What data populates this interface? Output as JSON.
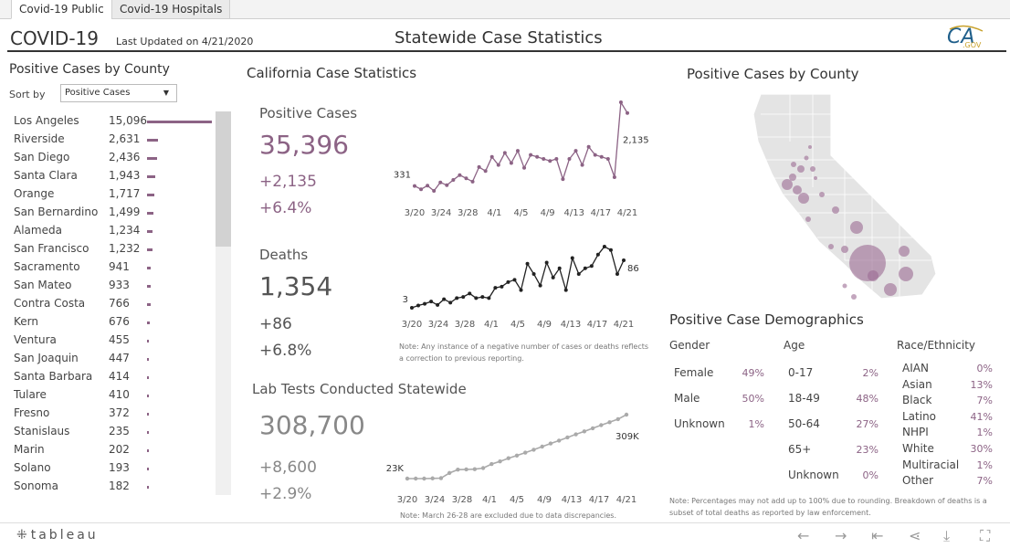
{
  "tabs": [
    {
      "label": "Covid-19 Public",
      "active": true
    },
    {
      "label": "Covid-19 Hospitals",
      "active": false
    }
  ],
  "header": {
    "title": "COVID-19",
    "updated": "Last Updated on 4/21/2020",
    "center_title": "Statewide Case Statistics",
    "logo_text": "CA",
    "logo_sub": ".GOV"
  },
  "county_panel": {
    "title": "Positive Cases by County",
    "sort_label": "Sort by",
    "sort_value": "Positive Cases",
    "counties": [
      {
        "name": "Los Angeles",
        "value": "15,096",
        "n": 15096
      },
      {
        "name": "Riverside",
        "value": "2,631",
        "n": 2631
      },
      {
        "name": "San Diego",
        "value": "2,436",
        "n": 2436
      },
      {
        "name": "Santa Clara",
        "value": "1,943",
        "n": 1943
      },
      {
        "name": "Orange",
        "value": "1,717",
        "n": 1717
      },
      {
        "name": "San Bernardino",
        "value": "1,499",
        "n": 1499
      },
      {
        "name": "Alameda",
        "value": "1,234",
        "n": 1234
      },
      {
        "name": "San Francisco",
        "value": "1,232",
        "n": 1232
      },
      {
        "name": "Sacramento",
        "value": "941",
        "n": 941
      },
      {
        "name": "San Mateo",
        "value": "933",
        "n": 933
      },
      {
        "name": "Contra Costa",
        "value": "766",
        "n": 766
      },
      {
        "name": "Kern",
        "value": "676",
        "n": 676
      },
      {
        "name": "Ventura",
        "value": "455",
        "n": 455
      },
      {
        "name": "San Joaquin",
        "value": "447",
        "n": 447
      },
      {
        "name": "Santa Barbara",
        "value": "414",
        "n": 414
      },
      {
        "name": "Tulare",
        "value": "410",
        "n": 410
      },
      {
        "name": "Fresno",
        "value": "372",
        "n": 372
      },
      {
        "name": "Stanislaus",
        "value": "235",
        "n": 235
      },
      {
        "name": "Marin",
        "value": "202",
        "n": 202
      },
      {
        "name": "Solano",
        "value": "193",
        "n": 193
      },
      {
        "name": "Sonoma",
        "value": "182",
        "n": 182
      }
    ]
  },
  "stats": {
    "title": "California Case Statistics",
    "positive": {
      "label": "Positive Cases",
      "total": "35,396",
      "delta": "+2,135",
      "pct": "+6.4%",
      "first": "331",
      "last": "2,135"
    },
    "deaths": {
      "label": "Deaths",
      "total": "1,354",
      "delta": "+86",
      "pct": "+6.8%",
      "first": "3",
      "last": "86"
    },
    "deaths_note": "Note: Any instance of a negative number of cases or deaths reflects a correction to previous reporting.",
    "tests": {
      "label": "Lab Tests Conducted Statewide",
      "total": "308,700",
      "delta": "+8,600",
      "pct": "+2.9%",
      "first": "23K",
      "last": "309K"
    },
    "tests_note": "Note: March 26-28 are excluded due to data discrepancies.",
    "x_ticks": [
      "3/20",
      "3/24",
      "3/28",
      "4/1",
      "4/5",
      "4/9",
      "4/13",
      "4/17",
      "4/21"
    ],
    "positive_series": [
      331,
      250,
      340,
      210,
      420,
      350,
      480,
      600,
      520,
      440,
      800,
      700,
      1050,
      850,
      1150,
      900,
      1200,
      780,
      1100,
      1050,
      1000,
      950,
      1000,
      500,
      1000,
      1200,
      850,
      1300,
      1100,
      1050,
      1000,
      550,
      2400,
      2135
    ],
    "deaths_series": [
      3,
      7,
      10,
      14,
      8,
      18,
      12,
      20,
      22,
      28,
      20,
      22,
      20,
      38,
      40,
      48,
      52,
      34,
      80,
      62,
      42,
      82,
      56,
      72,
      34,
      90,
      62,
      72,
      76,
      96,
      110,
      104,
      62,
      86
    ],
    "tests_series": [
      23,
      23,
      23,
      24,
      25,
      48,
      63,
      64,
      65,
      70,
      88,
      100,
      114,
      126,
      139,
      152,
      166,
      180,
      193,
      207,
      221,
      234,
      248,
      262,
      275,
      289,
      309
    ]
  },
  "map": {
    "title": "Positive Cases by County"
  },
  "demographics": {
    "title": "Positive Case Demographics",
    "gender": {
      "header": "Gender",
      "rows": [
        {
          "label": "Female",
          "value": "49%"
        },
        {
          "label": "Male",
          "value": "50%"
        },
        {
          "label": "Unknown",
          "value": "1%"
        }
      ]
    },
    "age": {
      "header": "Age",
      "rows": [
        {
          "label": "0-17",
          "value": "2%"
        },
        {
          "label": "18-49",
          "value": "48%"
        },
        {
          "label": "50-64",
          "value": "27%"
        },
        {
          "label": "65+",
          "value": "23%"
        },
        {
          "label": "Unknown",
          "value": "0%"
        }
      ]
    },
    "race": {
      "header": "Race/Ethnicity",
      "rows": [
        {
          "label": "AIAN",
          "value": "0%"
        },
        {
          "label": "Asian",
          "value": "13%"
        },
        {
          "label": "Black",
          "value": "7%"
        },
        {
          "label": "Latino",
          "value": "41%"
        },
        {
          "label": "NHPI",
          "value": "1%"
        },
        {
          "label": "White",
          "value": "30%"
        },
        {
          "label": "Multiracial",
          "value": "1%"
        },
        {
          "label": "Other",
          "value": "7%"
        }
      ]
    },
    "note": "Note: Percentages may not add up to 100% due to rounding. Breakdown of deaths is a subset of total deaths as reported by law enforcement."
  },
  "footer": {
    "logo": "tableau",
    "icons": [
      "undo-icon",
      "redo-icon",
      "revert-icon",
      "share-icon",
      "download-icon",
      "fullscreen-icon"
    ]
  }
}
